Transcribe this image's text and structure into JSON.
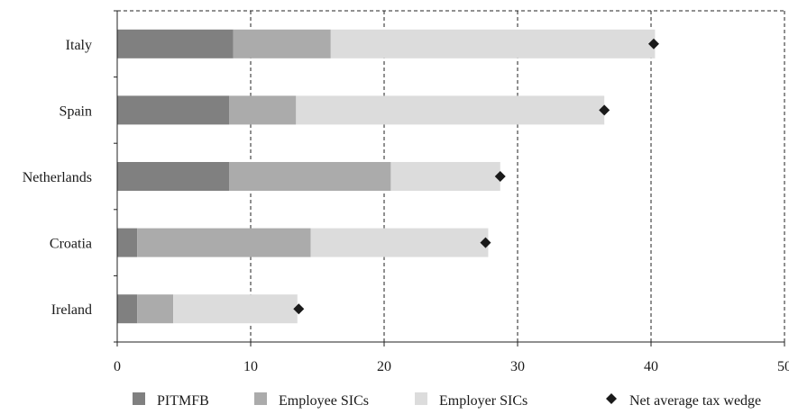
{
  "chart_data": {
    "type": "bar",
    "orientation": "horizontal",
    "stacked": true,
    "categories": [
      "Italy",
      "Spain",
      "Netherlands",
      "Croatia",
      "Ireland"
    ],
    "series": [
      {
        "name": "PITMFB",
        "values": [
          8.7,
          8.4,
          8.4,
          1.5,
          1.5
        ],
        "color": "#808080"
      },
      {
        "name": "Employee SICs",
        "values": [
          7.3,
          5.0,
          12.1,
          13.0,
          2.7
        ],
        "color": "#ababab"
      },
      {
        "name": "Employer SICs",
        "values": [
          24.3,
          23.1,
          8.2,
          13.3,
          9.3
        ],
        "color": "#dcdcdc"
      }
    ],
    "markers": {
      "name": "Net average tax wedge",
      "values": [
        40.2,
        36.5,
        28.7,
        27.6,
        13.6
      ],
      "color": "#1a1a1a",
      "shape": "diamond"
    },
    "xlim": [
      0,
      50
    ],
    "xticks": [
      0,
      10,
      20,
      30,
      40,
      50
    ],
    "grid": "dashed vertical",
    "legend_position": "bottom",
    "title": "",
    "xlabel": "",
    "ylabel": ""
  }
}
